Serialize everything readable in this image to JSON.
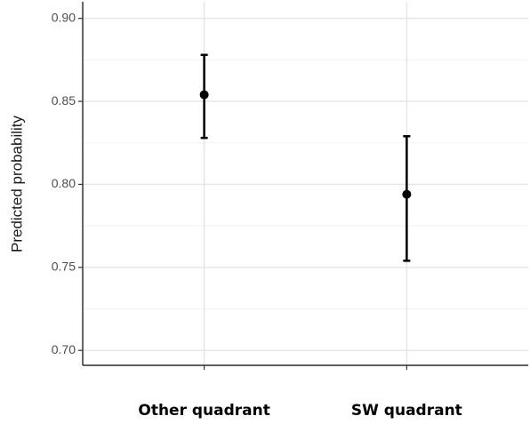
{
  "chart_data": {
    "type": "pointrange",
    "y_label": "Predicted probability",
    "categories": [
      "Other quadrant",
      "SW quadrant"
    ],
    "values": [
      0.854,
      0.794
    ],
    "lower": [
      0.828,
      0.754
    ],
    "upper": [
      0.878,
      0.829
    ],
    "color": "#000000",
    "ylim": [
      0.691,
      0.91
    ],
    "yticks": [
      {
        "value": 0.7,
        "label": "0.70"
      },
      {
        "value": 0.75,
        "label": "0.75"
      },
      {
        "value": 0.8,
        "label": "0.80"
      },
      {
        "value": 0.85,
        "label": "0.85"
      },
      {
        "value": 0.9,
        "label": "0.90"
      }
    ],
    "grid": true
  }
}
